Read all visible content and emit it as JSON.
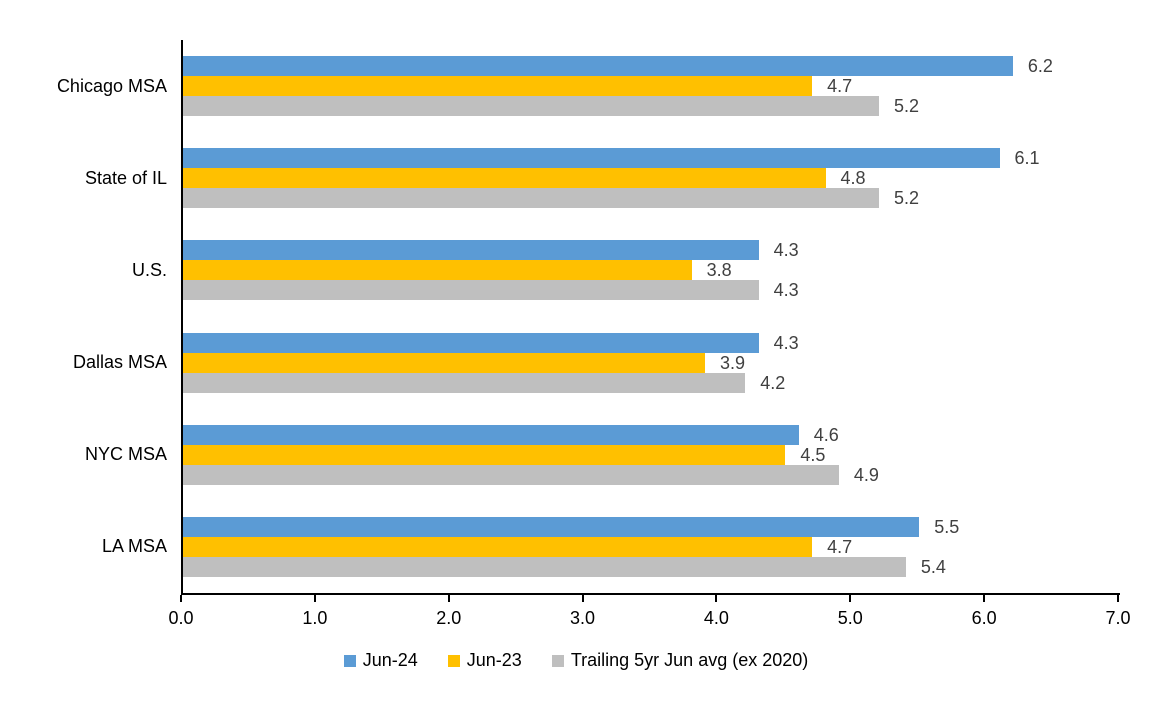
{
  "chart_data": {
    "type": "bar",
    "orientation": "horizontal",
    "title": "",
    "categories": [
      "Chicago MSA",
      "State of IL",
      "U.S.",
      "Dallas MSA",
      "NYC MSA",
      "LA MSA"
    ],
    "series": [
      {
        "name": "Jun-24",
        "color": "#5B9BD5",
        "values": [
          6.2,
          6.1,
          4.3,
          4.3,
          4.6,
          5.5
        ]
      },
      {
        "name": "Jun-23",
        "color": "#FFC000",
        "values": [
          4.7,
          4.8,
          3.8,
          3.9,
          4.5,
          4.7
        ]
      },
      {
        "name": "Trailing 5yr Jun avg (ex 2020)",
        "color": "#BFBFBF",
        "values": [
          5.2,
          5.2,
          4.3,
          4.2,
          4.9,
          5.4
        ]
      }
    ],
    "xlim": [
      0,
      7
    ],
    "x_ticks": [
      "0.0",
      "1.0",
      "2.0",
      "3.0",
      "4.0",
      "5.0",
      "6.0",
      "7.0"
    ],
    "grid": false,
    "data_labels": true,
    "data_label_color": "#404040",
    "axis_color": "#000000",
    "legend_position": "bottom"
  }
}
